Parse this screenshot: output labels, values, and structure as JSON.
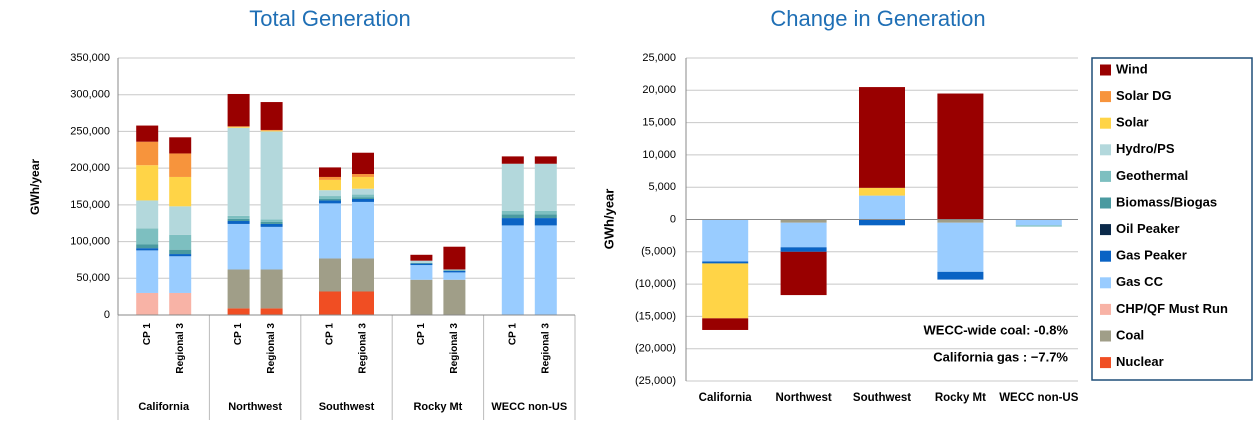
{
  "chart_data": [
    {
      "type": "stacked_bar",
      "title": "Total Generation",
      "y_label": "GWh/year",
      "categories": [
        "CP 1",
        "Regional 3",
        "CP 1",
        "Regional 3",
        "CP 1",
        "Regional 3",
        "CP 1",
        "Regional 3",
        "CP 1",
        "Regional 3"
      ],
      "groups": [
        "California",
        "Northwest",
        "Southwest",
        "Rocky Mt",
        "WECC non-US"
      ],
      "ylim": [
        0,
        350000
      ],
      "yticks": [
        0,
        {
          "value": 50000,
          "label": "50,000"
        },
        {
          "value": 100000,
          "label": "100,000"
        },
        {
          "value": 150000,
          "label": "150,000"
        },
        {
          "value": 200000,
          "label": "200,000"
        },
        {
          "value": 250000,
          "label": "250,000"
        },
        {
          "value": 300000,
          "label": "300,000"
        },
        {
          "value": 350000,
          "label": "350,000"
        }
      ],
      "grid": true,
      "series": [
        {
          "color": "#f04e23",
          "values": [
            0,
            0,
            9000,
            9000,
            32000,
            32000,
            0,
            0,
            0,
            0
          ]
        },
        {
          "color": "#a09e88",
          "values": [
            0,
            0,
            53000,
            53000,
            45000,
            45000,
            48000,
            48000,
            0,
            0
          ]
        },
        {
          "color": "#f8b3a6",
          "values": [
            30000,
            30000,
            0,
            0,
            0,
            0,
            0,
            0,
            0,
            0
          ]
        },
        {
          "color": "#99ccff",
          "values": [
            58000,
            50000,
            62000,
            58000,
            75000,
            77000,
            20000,
            10000,
            122000,
            122000
          ]
        },
        {
          "color": "#0a63c4",
          "values": [
            3000,
            3000,
            4000,
            4000,
            4000,
            4000,
            2000,
            2000,
            10000,
            10000
          ]
        },
        {
          "color": "#0b2a4a",
          "values": [
            0,
            0,
            0,
            0,
            0,
            0,
            0,
            0,
            0,
            0
          ]
        },
        {
          "color": "#4a9aa0",
          "values": [
            5000,
            6000,
            3000,
            3000,
            2000,
            2000,
            1000,
            1000,
            5000,
            5000
          ]
        },
        {
          "color": "#7dbfc0",
          "values": [
            22000,
            20000,
            4000,
            3000,
            4000,
            4000,
            0,
            0,
            5000,
            5000
          ]
        },
        {
          "color": "#b3d8dc",
          "values": [
            38000,
            39000,
            120000,
            120000,
            8000,
            8000,
            3000,
            1000,
            64000,
            64000
          ]
        },
        {
          "color": "#ffd447",
          "values": [
            48000,
            40000,
            1000,
            1000,
            14000,
            16000,
            0,
            0,
            0,
            0
          ]
        },
        {
          "color": "#f7943c",
          "values": [
            32000,
            32000,
            1000,
            1000,
            4000,
            4000,
            0,
            0,
            0,
            0
          ]
        },
        {
          "color": "#990000",
          "values": [
            22000,
            22000,
            44000,
            38000,
            13000,
            29000,
            8000,
            31000,
            10000,
            10000
          ]
        }
      ]
    },
    {
      "type": "stacked_bar",
      "title": "Change in Generation",
      "y_label": "GWh/year",
      "categories": [
        "California",
        "Northwest",
        "Southwest",
        "Rocky Mt",
        "WECC non-US"
      ],
      "ylim": [
        -25000,
        25000
      ],
      "yticks": [
        {
          "value": -25000,
          "label": "(25,000)"
        },
        {
          "value": -20000,
          "label": "(20,000)"
        },
        {
          "value": -15000,
          "label": "(15,000)"
        },
        {
          "value": -10000,
          "label": "(10,000)"
        },
        {
          "value": -5000,
          "label": "(5,000)"
        },
        0,
        {
          "value": 5000,
          "label": "5,000"
        },
        {
          "value": 10000,
          "label": "10,000"
        },
        {
          "value": 15000,
          "label": "15,000"
        },
        {
          "value": 20000,
          "label": "20,000"
        },
        {
          "value": 25000,
          "label": "25,000"
        }
      ],
      "grid": true,
      "annotations": [
        "WECC-wide coal: -0.8%",
        "California gas : −7.7%"
      ],
      "series": [
        {
          "name": "Nuclear",
          "color": "#f04e23",
          "values": [
            0,
            0,
            0,
            0,
            0
          ]
        },
        {
          "name": "Coal",
          "color": "#a09e88",
          "values": [
            0,
            -500,
            0,
            -500,
            0
          ]
        },
        {
          "name": "CHP/QF Must Run",
          "color": "#f8b3a6",
          "values": [
            0,
            0,
            0,
            0,
            0
          ]
        },
        {
          "name": "Gas CC",
          "color": "#99ccff",
          "values": [
            -6500,
            -3800,
            3700,
            -7600,
            -900
          ]
        },
        {
          "name": "Gas Peaker",
          "color": "#0a63c4",
          "values": [
            -300,
            -700,
            -900,
            -1200,
            0
          ]
        },
        {
          "name": "Oil Peaker",
          "color": "#0b2a4a",
          "values": [
            0,
            0,
            0,
            0,
            0
          ]
        },
        {
          "name": "Biomass/Biogas",
          "color": "#4a9aa0",
          "values": [
            0,
            0,
            0,
            0,
            0
          ]
        },
        {
          "name": "Geothermal",
          "color": "#7dbfc0",
          "values": [
            0,
            0,
            0,
            0,
            -200
          ]
        },
        {
          "name": "Hydro/PS",
          "color": "#b3d8dc",
          "values": [
            0,
            0,
            0,
            0,
            0
          ]
        },
        {
          "name": "Solar",
          "color": "#ffd447",
          "values": [
            -8500,
            0,
            1200,
            0,
            0
          ]
        },
        {
          "name": "Solar DG",
          "color": "#f7943c",
          "values": [
            0,
            0,
            0,
            0,
            0
          ]
        },
        {
          "name": "Wind",
          "color": "#990000",
          "values": [
            -1800,
            -6700,
            15600,
            19500,
            0
          ]
        }
      ]
    }
  ]
}
